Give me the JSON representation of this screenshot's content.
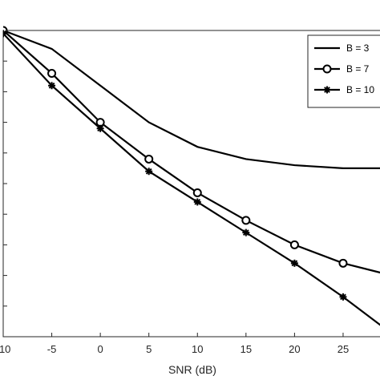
{
  "chart_data": {
    "type": "line",
    "xlabel": "SNR (dB)",
    "ylabel": "",
    "title": "",
    "x": [
      -10,
      -5,
      0,
      5,
      10,
      15,
      20,
      25,
      30
    ],
    "x_tick_labels": [
      "-10",
      "-5",
      "0",
      "5",
      "10",
      "15",
      "20",
      "25"
    ],
    "xlim": [
      -10,
      28.8
    ],
    "ylim": [
      0,
      10
    ],
    "grid": false,
    "legend_position": "top-right",
    "series": [
      {
        "name": "B = 3",
        "marker": "none",
        "values": [
          10,
          9.4,
          8.2,
          7.0,
          6.2,
          5.8,
          5.6,
          5.5,
          5.5
        ]
      },
      {
        "name": "B = 7",
        "marker": "circle",
        "values": [
          10,
          8.6,
          7.0,
          5.8,
          4.7,
          3.8,
          3.0,
          2.4,
          2.0
        ]
      },
      {
        "name": "B = 10",
        "marker": "star",
        "values": [
          9.9,
          8.2,
          6.8,
          5.4,
          4.4,
          3.4,
          2.4,
          1.3,
          0.1
        ]
      }
    ],
    "colors": {
      "line": "#000000",
      "axis": "#262626"
    }
  }
}
